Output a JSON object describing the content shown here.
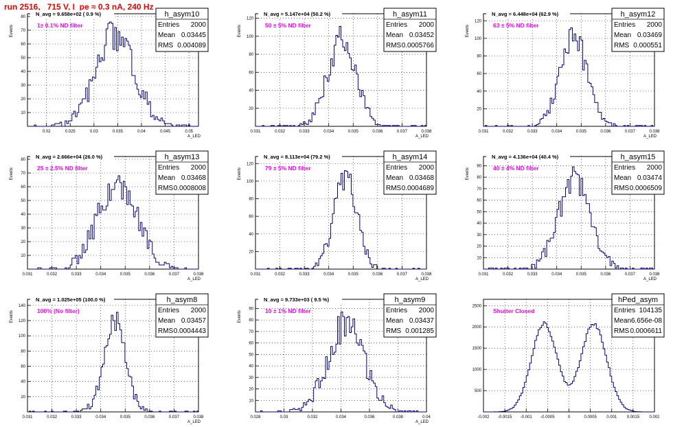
{
  "page": {
    "title": "run 2516,   715 V, I_pe ≈ 0.3 nA, 240 Hz"
  },
  "colors": {
    "histogram": "#00007f",
    "annotation": "#ff00ff",
    "title": "#ee0000",
    "grid": "#000000"
  },
  "chart_data": [
    {
      "type": "histogram",
      "name": "h_asym10",
      "navg": "N_avg = 9.658e+02 ( 0.9 %)",
      "annotation": "1± 0.1% ND filter",
      "stats": [
        [
          "Entries",
          "2000"
        ],
        [
          "Mean",
          "0.03445"
        ],
        [
          "RMS",
          "0.004089"
        ]
      ],
      "xlabel": "A_LED",
      "ylabel": "Events",
      "xlim": [
        0.016,
        0.052
      ],
      "ylim": [
        0,
        82
      ],
      "xticks": [
        0.02,
        0.025,
        0.03,
        0.035,
        0.04,
        0.045,
        0.05
      ],
      "yticks": [
        10,
        20,
        30,
        40,
        50,
        60,
        70,
        80
      ],
      "xticklabels": [
        "0.02",
        "0.025",
        "0.03",
        "0.035",
        "0.04",
        "0.045",
        "0.05"
      ],
      "yticklabels": [
        "10",
        "20",
        "30",
        "40",
        "50",
        "60",
        "70",
        "80"
      ],
      "grid": true,
      "mean": 0.03445,
      "rms": 0.0041,
      "peak": 78
    },
    {
      "type": "histogram",
      "name": "h_asym11",
      "navg": "N_avg = 5.147e+04 (50.2 %)",
      "annotation": "50 ± 5% ND filter",
      "stats": [
        [
          "Entries",
          "2000"
        ],
        [
          "Mean",
          "0.03452"
        ],
        [
          "RMS",
          "0.0005766"
        ]
      ],
      "xlabel": "A_LED",
      "ylabel": "Events",
      "xlim": [
        0.031,
        0.038
      ],
      "ylim": [
        0,
        125
      ],
      "xticks": [
        0.031,
        0.032,
        0.033,
        0.034,
        0.035,
        0.036,
        0.037,
        0.038
      ],
      "yticks": [
        20,
        40,
        60,
        80,
        100,
        120
      ],
      "xticklabels": [
        "0.031",
        "0.032",
        "0.033",
        "0.034",
        "0.035",
        "0.036",
        "0.037",
        "0.038"
      ],
      "yticklabels": [
        "20",
        "40",
        "60",
        "80",
        "100",
        "120"
      ],
      "grid": true,
      "mean": 0.03452,
      "rms": 0.000577,
      "peak": 112
    },
    {
      "type": "histogram",
      "name": "h_asym12",
      "navg": "N_avg = 6.448e+04 (62.9 %)",
      "annotation": "63 ± 5% ND filter",
      "stats": [
        [
          "Entries",
          "2000"
        ],
        [
          "Mean",
          "0.03469"
        ],
        [
          "RMS",
          "0.000551"
        ]
      ],
      "xlabel": "A_LED",
      "ylabel": "Events",
      "xlim": [
        0.031,
        0.038
      ],
      "ylim": [
        0,
        128
      ],
      "xticks": [
        0.031,
        0.032,
        0.033,
        0.034,
        0.035,
        0.036,
        0.037,
        0.038
      ],
      "yticks": [
        20,
        40,
        60,
        80,
        100,
        120
      ],
      "xticklabels": [
        "0.031",
        "0.032",
        "0.033",
        "0.034",
        "0.035",
        "0.036",
        "0.037",
        "0.038"
      ],
      "yticklabels": [
        "20",
        "40",
        "60",
        "80",
        "100",
        "120"
      ],
      "grid": true,
      "mean": 0.03469,
      "rms": 0.000551,
      "peak": 118
    },
    {
      "type": "histogram",
      "name": "h_asym13",
      "navg": "N_avg = 2.666e+04 (26.0 %)",
      "annotation": "25 ± 2.5% ND filter",
      "stats": [
        [
          "Entries",
          "2000"
        ],
        [
          "Mean",
          "0.03468"
        ],
        [
          "RMS",
          "0.0008008"
        ]
      ],
      "xlabel": "A_LED",
      "ylabel": "Events",
      "xlim": [
        0.031,
        0.038
      ],
      "ylim": [
        0,
        82
      ],
      "xticks": [
        0.031,
        0.032,
        0.033,
        0.034,
        0.035,
        0.036,
        0.037,
        0.038
      ],
      "yticks": [
        10,
        20,
        30,
        40,
        50,
        60,
        70,
        80
      ],
      "xticklabels": [
        "0.031",
        "0.032",
        "0.033",
        "0.034",
        "0.035",
        "0.036",
        "0.037",
        "0.038"
      ],
      "yticklabels": [
        "10",
        "20",
        "30",
        "40",
        "50",
        "60",
        "70",
        "80"
      ],
      "grid": true,
      "mean": 0.03468,
      "rms": 0.0008,
      "peak": 75
    },
    {
      "type": "histogram",
      "name": "h_asym14",
      "navg": "N_avg = 8.113e+04 (79.2 %)",
      "annotation": "79 ± 5% ND filter",
      "stats": [
        [
          "Entries",
          "2000"
        ],
        [
          "Mean",
          "0.03468"
        ],
        [
          "RMS",
          "0.0004689"
        ]
      ],
      "xlabel": "A_LED",
      "ylabel": "Events",
      "xlim": [
        0.031,
        0.038
      ],
      "ylim": [
        0,
        128
      ],
      "xticks": [
        0.031,
        0.032,
        0.033,
        0.034,
        0.035,
        0.036,
        0.037,
        0.038
      ],
      "yticks": [
        20,
        40,
        60,
        80,
        100,
        120
      ],
      "xticklabels": [
        "0.031",
        "0.032",
        "0.033",
        "0.034",
        "0.035",
        "0.036",
        "0.037",
        "0.038"
      ],
      "yticklabels": [
        "20",
        "40",
        "60",
        "80",
        "100",
        "120"
      ],
      "grid": true,
      "mean": 0.03468,
      "rms": 0.000469,
      "peak": 124
    },
    {
      "type": "histogram",
      "name": "h_asym15",
      "navg": "N_avg = 4.136e+04 (40.4 %)",
      "annotation": "40 ± 4% ND filter",
      "stats": [
        [
          "Entries",
          "2000"
        ],
        [
          "Mean",
          "0.03474"
        ],
        [
          "RMS",
          "0.0006509"
        ]
      ],
      "xlabel": "A_LED",
      "ylabel": "Events",
      "xlim": [
        0.031,
        0.038
      ],
      "ylim": [
        0,
        98
      ],
      "xticks": [
        0.031,
        0.032,
        0.033,
        0.034,
        0.035,
        0.036,
        0.037,
        0.038
      ],
      "yticks": [
        10,
        20,
        30,
        40,
        50,
        60,
        70,
        80,
        90
      ],
      "xticklabels": [
        "0.031",
        "0.032",
        "0.033",
        "0.034",
        "0.035",
        "0.036",
        "0.037",
        "0.038"
      ],
      "yticklabels": [
        "10",
        "20",
        "30",
        "40",
        "50",
        "60",
        "70",
        "80",
        "90"
      ],
      "grid": true,
      "mean": 0.03474,
      "rms": 0.00065,
      "peak": 93
    },
    {
      "type": "histogram",
      "name": "h_asym8",
      "navg": "N_avg = 1.025e+05 (100.0 %)",
      "annotation": "100% (No filter)",
      "stats": [
        [
          "Entries",
          "2000"
        ],
        [
          "Mean",
          "0.03457"
        ],
        [
          "RMS",
          "0.0004443"
        ]
      ],
      "xlabel": "A_LED",
      "ylabel": "Events",
      "xlim": [
        0.031,
        0.038
      ],
      "ylim": [
        0,
        148
      ],
      "xticks": [
        0.031,
        0.032,
        0.033,
        0.034,
        0.035,
        0.036,
        0.037,
        0.038
      ],
      "yticks": [
        20,
        40,
        60,
        80,
        100,
        120,
        140
      ],
      "xticklabels": [
        "0.031",
        "0.032",
        "0.033",
        "0.034",
        "0.035",
        "0.036",
        "0.037",
        "0.038"
      ],
      "yticklabels": [
        "20",
        "40",
        "60",
        "80",
        "100",
        "120",
        "140"
      ],
      "grid": true,
      "mean": 0.03457,
      "rms": 0.000444,
      "peak": 138
    },
    {
      "type": "histogram",
      "name": "h_asym9",
      "navg": "N_avg = 9.733e+03 ( 9.5 %)",
      "annotation": "10 ± 1% ND filter",
      "stats": [
        [
          "Entries",
          "2000"
        ],
        [
          "Mean",
          "0.03437"
        ],
        [
          "RMS",
          "0.001285"
        ]
      ],
      "xlabel": "A_LED",
      "ylabel": "Events",
      "xlim": [
        0.028,
        0.04
      ],
      "ylim": [
        0,
        98
      ],
      "xticks": [
        0.028,
        0.03,
        0.032,
        0.034,
        0.036,
        0.038,
        0.04
      ],
      "yticks": [
        10,
        20,
        30,
        40,
        50,
        60,
        70,
        80,
        90
      ],
      "xticklabels": [
        "0.028",
        "0.03",
        "0.032",
        "0.034",
        "0.036",
        "0.038",
        "0.04"
      ],
      "yticklabels": [
        "10",
        "20",
        "30",
        "40",
        "50",
        "60",
        "70",
        "80",
        "90"
      ],
      "grid": true,
      "mean": 0.03437,
      "rms": 0.00128,
      "peak": 89
    },
    {
      "type": "histogram",
      "name": "hPed_asym",
      "navg": "",
      "annotation": "Shutter Closed",
      "stats": [
        [
          "Entries",
          "104135"
        ],
        [
          "Mean",
          "6.656e-08"
        ],
        [
          "RMS",
          "0.0006611"
        ]
      ],
      "xlabel": "",
      "ylabel": "",
      "xlim": [
        -0.002,
        0.002
      ],
      "ylim": [
        0,
        2650
      ],
      "xticks": [
        -0.002,
        -0.0015,
        -0.001,
        -0.0005,
        0,
        0.0005,
        0.001,
        0.0015,
        0.002
      ],
      "yticks": [
        500,
        1000,
        1500,
        2000,
        2500
      ],
      "xticklabels": [
        "-0.002",
        "-0.0015",
        "-0.001",
        "-0.0005",
        "0",
        "0.0005",
        "0.001",
        "0.0015",
        "0.002"
      ],
      "yticklabels": [
        "500",
        "1000",
        "1500",
        "2000",
        "2500"
      ],
      "grid": true,
      "bimodal": [
        -0.00058,
        0.00058
      ],
      "sigma": 0.0003,
      "peak": 2530
    }
  ]
}
